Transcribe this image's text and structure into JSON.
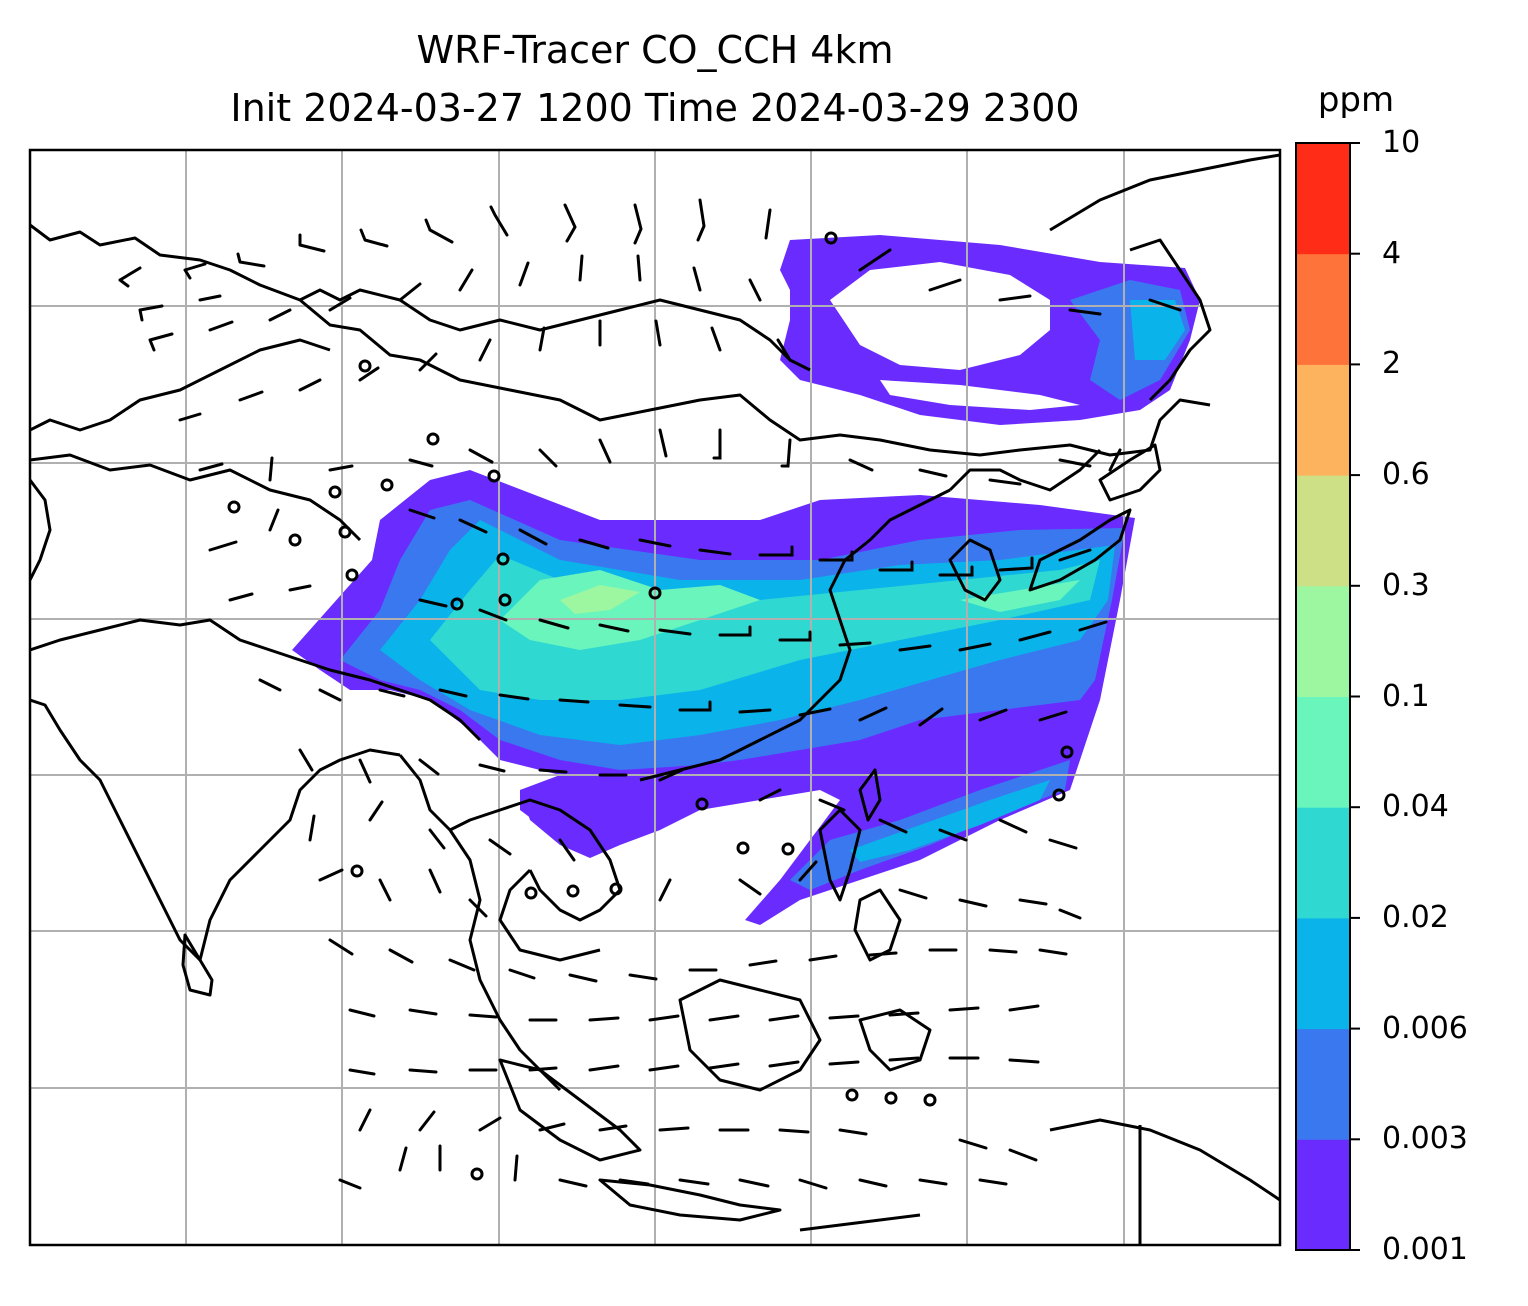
{
  "title": {
    "line1": "WRF-Tracer CO_CCH 4km",
    "line2": "Init 2024-03-27 1200 Time 2024-03-29 2300"
  },
  "colorbar": {
    "unit": "ppm",
    "levels": [
      "0.001",
      "0.003",
      "0.006",
      "0.02",
      "0.04",
      "0.1",
      "0.3",
      "0.6",
      "2",
      "4",
      "10"
    ],
    "colors": [
      "#6a2bff",
      "#3a78f0",
      "#0ab4ea",
      "#2fd9d2",
      "#6af5bc",
      "#9cf7a0",
      "#cde086",
      "#fdb25d",
      "#fe733a",
      "#ff2d18"
    ]
  },
  "map": {
    "background": "#ffffff",
    "coastline_color": "#000000",
    "gridline_color": "#b0b0b0",
    "wind_barb_color": "#000000",
    "calm_marker": "circle"
  }
}
